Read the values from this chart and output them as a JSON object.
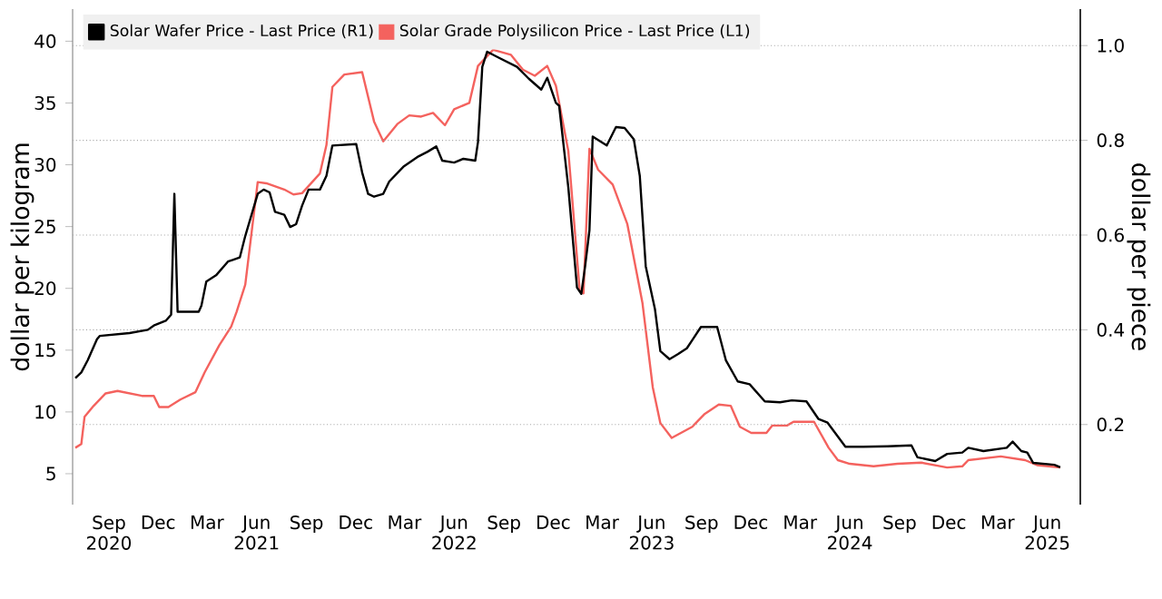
{
  "chart_data": {
    "type": "line",
    "ylabel": "dollar per kilogram",
    "y2label": "dollar per piece",
    "legend": "top left",
    "grid": "y",
    "line_style": "solid",
    "marker": "none",
    "xlim": [
      "2020-07-10",
      "2025-08-15"
    ],
    "xticks": [
      {
        "value": "2020-09-15",
        "label": "Sep 2020"
      },
      {
        "value": "2020-12-15",
        "label": "Dec"
      },
      {
        "value": "2021-03-15",
        "label": "Mar"
      },
      {
        "value": "2021-06-15",
        "label": "Jun 2021"
      },
      {
        "value": "2021-09-15",
        "label": "Sep"
      },
      {
        "value": "2021-12-15",
        "label": "Dec"
      },
      {
        "value": "2022-03-15",
        "label": "Mar"
      },
      {
        "value": "2022-06-15",
        "label": "Jun 2022"
      },
      {
        "value": "2022-09-15",
        "label": "Sep"
      },
      {
        "value": "2022-12-15",
        "label": "Dec"
      },
      {
        "value": "2023-03-15",
        "label": "Mar"
      },
      {
        "value": "2023-06-15",
        "label": "Jun 2023"
      },
      {
        "value": "2023-09-15",
        "label": "Sep"
      },
      {
        "value": "2023-12-15",
        "label": "Dec"
      },
      {
        "value": "2024-03-15",
        "label": "Mar"
      },
      {
        "value": "2024-06-15",
        "label": "Jun 2024"
      },
      {
        "value": "2024-09-15",
        "label": "Sep"
      },
      {
        "value": "2024-12-15",
        "label": "Dec"
      },
      {
        "value": "2025-03-15",
        "label": "Mar"
      },
      {
        "value": "2025-06-15",
        "label": "Jun 2025"
      }
    ],
    "ylim": [
      2.5,
      42.6
    ],
    "yticks": [
      5,
      10,
      15,
      20,
      25,
      30,
      35,
      40
    ],
    "y2lim": [
      0.031,
      1.077
    ],
    "y2ticks": [
      0.2,
      0.4,
      0.6,
      0.8,
      {
        "value": 1.0,
        "label": "1.0"
      }
    ],
    "series": [
      {
        "name": "Solar Wafer Price - Last Price (R1)",
        "color": "#000000",
        "axis": "y2",
        "x": [
          "2020-07-15",
          "2020-07-26",
          "2020-08-07",
          "2020-08-24",
          "2020-08-29",
          "2020-10-23",
          "2020-11-26",
          "2020-12-07",
          "2020-12-29",
          "2021-01-08",
          "2021-01-14",
          "2021-01-20",
          "2021-02-28",
          "2021-03-05",
          "2021-03-14",
          "2021-04-01",
          "2021-04-23",
          "2021-05-15",
          "2021-05-25",
          "2021-06-17",
          "2021-06-28",
          "2021-07-09",
          "2021-07-19",
          "2021-08-05",
          "2021-08-16",
          "2021-08-27",
          "2021-09-07",
          "2021-09-19",
          "2021-10-10",
          "2021-10-22",
          "2021-11-02",
          "2021-12-16",
          "2021-12-27",
          "2022-01-07",
          "2022-01-18",
          "2022-02-04",
          "2022-02-15",
          "2022-03-13",
          "2022-04-10",
          "2022-04-27",
          "2022-05-13",
          "2022-05-24",
          "2022-06-15",
          "2022-07-02",
          "2022-07-24",
          "2022-07-29",
          "2022-08-06",
          "2022-08-15",
          "2022-09-06",
          "2022-10-09",
          "2022-10-31",
          "2022-11-23",
          "2022-12-04",
          "2022-12-20",
          "2022-12-26",
          "2023-01-12",
          "2023-01-28",
          "2023-02-05",
          "2023-02-12",
          "2023-02-20",
          "2023-02-26",
          "2023-03-24",
          "2023-04-10",
          "2023-04-26",
          "2023-05-13",
          "2023-05-24",
          "2023-06-04",
          "2023-06-21",
          "2023-07-01",
          "2023-07-18",
          "2023-08-03",
          "2023-08-19",
          "2023-09-14",
          "2023-10-14",
          "2023-10-30",
          "2023-11-21",
          "2023-12-13",
          "2024-01-10",
          "2024-02-07",
          "2024-02-29",
          "2024-03-27",
          "2024-04-18",
          "2024-05-05",
          "2024-06-07",
          "2024-07-10",
          "2024-08-24",
          "2024-10-07",
          "2024-10-18",
          "2024-11-20",
          "2024-12-12",
          "2025-01-09",
          "2025-01-20",
          "2025-02-17",
          "2025-04-01",
          "2025-04-12",
          "2025-04-28",
          "2025-05-09",
          "2025-05-20",
          "2025-06-28",
          "2025-07-09"
        ],
        "values": [
          0.298,
          0.31,
          0.336,
          0.38,
          0.387,
          0.393,
          0.4,
          0.409,
          0.419,
          0.432,
          0.687,
          0.438,
          0.438,
          0.451,
          0.502,
          0.515,
          0.544,
          0.553,
          0.598,
          0.687,
          0.696,
          0.69,
          0.649,
          0.643,
          0.617,
          0.623,
          0.662,
          0.696,
          0.696,
          0.725,
          0.789,
          0.792,
          0.732,
          0.687,
          0.681,
          0.687,
          0.713,
          0.744,
          0.766,
          0.776,
          0.787,
          0.757,
          0.753,
          0.761,
          0.757,
          0.796,
          0.955,
          0.987,
          0.974,
          0.955,
          0.93,
          0.907,
          0.932,
          0.879,
          0.873,
          0.7,
          0.489,
          0.476,
          0.534,
          0.61,
          0.808,
          0.789,
          0.828,
          0.826,
          0.802,
          0.725,
          0.534,
          0.444,
          0.355,
          0.338,
          0.349,
          0.361,
          0.406,
          0.406,
          0.336,
          0.291,
          0.285,
          0.249,
          0.247,
          0.251,
          0.249,
          0.212,
          0.204,
          0.153,
          0.153,
          0.154,
          0.156,
          0.131,
          0.123,
          0.138,
          0.141,
          0.151,
          0.144,
          0.151,
          0.164,
          0.144,
          0.141,
          0.119,
          0.115,
          0.11
        ]
      },
      {
        "name": "Solar Grade Polysilicon Price - Last Price (L1)",
        "color": "#f4625e",
        "axis": "y",
        "x": [
          "2020-07-15",
          "2020-07-26",
          "2020-08-01",
          "2020-08-18",
          "2020-09-09",
          "2020-10-01",
          "2020-11-15",
          "2020-12-07",
          "2020-12-17",
          "2021-01-03",
          "2021-01-25",
          "2021-02-22",
          "2021-03-11",
          "2021-04-07",
          "2021-04-29",
          "2021-05-09",
          "2021-05-25",
          "2021-06-17",
          "2021-07-03",
          "2021-08-05",
          "2021-08-22",
          "2021-09-07",
          "2021-10-10",
          "2021-10-22",
          "2021-11-02",
          "2021-11-24",
          "2021-12-27",
          "2022-01-18",
          "2022-02-04",
          "2022-03-02",
          "2022-03-24",
          "2022-04-15",
          "2022-05-07",
          "2022-05-29",
          "2022-06-15",
          "2022-07-13",
          "2022-07-29",
          "2022-08-26",
          "2022-09-28",
          "2022-10-20",
          "2022-11-11",
          "2022-12-04",
          "2022-12-20",
          "2023-01-12",
          "2023-02-02",
          "2023-02-09",
          "2023-02-20",
          "2023-03-08",
          "2023-04-04",
          "2023-05-01",
          "2023-05-29",
          "2023-06-17",
          "2023-07-01",
          "2023-07-22",
          "2023-08-29",
          "2023-09-20",
          "2023-10-17",
          "2023-11-08",
          "2023-11-25",
          "2023-12-16",
          "2024-01-13",
          "2024-01-24",
          "2024-02-20",
          "2024-03-03",
          "2024-04-10",
          "2024-05-07",
          "2024-05-24",
          "2024-06-15",
          "2024-07-29",
          "2024-09-11",
          "2024-10-25",
          "2024-12-12",
          "2025-01-09",
          "2025-01-20",
          "2025-03-21",
          "2025-05-05",
          "2025-05-27",
          "2025-07-09"
        ],
        "values": [
          7.1,
          7.4,
          9.6,
          10.5,
          11.5,
          11.7,
          11.3,
          11.3,
          10.4,
          10.4,
          11.0,
          11.6,
          13.2,
          15.4,
          16.9,
          18.1,
          20.3,
          28.6,
          28.5,
          28.0,
          27.6,
          27.7,
          29.3,
          31.6,
          36.3,
          37.3,
          37.5,
          33.5,
          31.9,
          33.3,
          34.0,
          33.9,
          34.2,
          33.2,
          34.5,
          35.0,
          38.0,
          39.3,
          38.9,
          37.7,
          37.2,
          38.0,
          36.4,
          31.1,
          19.8,
          19.6,
          31.3,
          29.6,
          28.4,
          25.2,
          18.8,
          12.0,
          9.1,
          7.9,
          8.8,
          9.8,
          10.6,
          10.5,
          8.8,
          8.3,
          8.3,
          8.9,
          8.9,
          9.2,
          9.2,
          7.1,
          6.1,
          5.8,
          5.6,
          5.8,
          5.9,
          5.5,
          5.6,
          6.1,
          6.4,
          6.1,
          5.7,
          5.5
        ]
      }
    ]
  }
}
